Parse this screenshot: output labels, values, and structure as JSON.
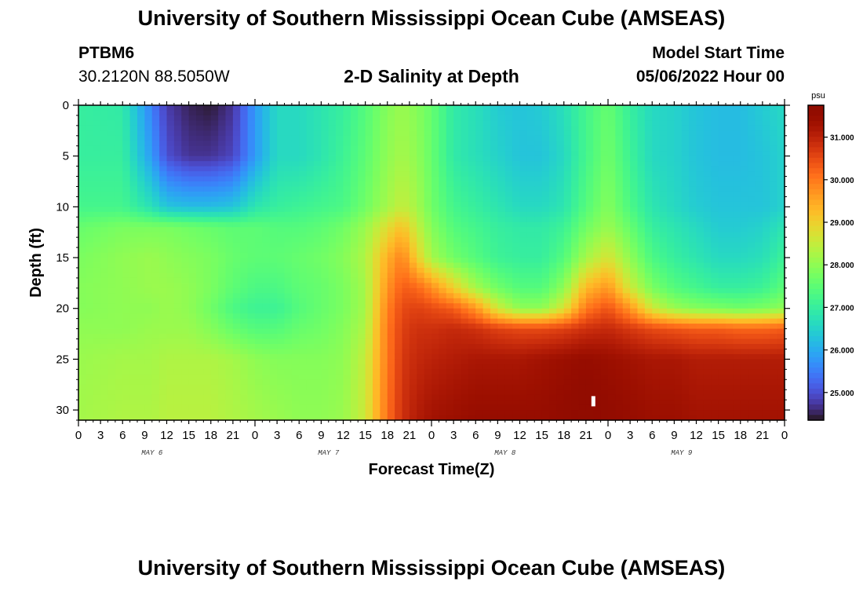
{
  "header": {
    "title": "University of Southern Mississippi Ocean Cube (AMSEAS)",
    "station": "PTBM6",
    "coords": "30.2120N  88.5050W",
    "product": "2-D Salinity at Depth",
    "model_start_label": "Model Start Time",
    "model_start_value": "05/06/2022 Hour 00"
  },
  "footer": {
    "title": "University of Southern Mississippi Ocean Cube (AMSEAS)"
  },
  "chart_data": {
    "type": "heatmap",
    "title": "2-D Salinity at Depth",
    "xlabel": "Forecast Time(Z)",
    "ylabel": "Depth (ft)",
    "x_tick_labels": [
      "0",
      "3",
      "6",
      "9",
      "12",
      "15",
      "18",
      "21",
      "0",
      "3",
      "6",
      "9",
      "12",
      "15",
      "18",
      "21",
      "0",
      "3",
      "6",
      "9",
      "12",
      "15",
      "18",
      "21",
      "0",
      "3",
      "6",
      "9",
      "12",
      "15",
      "18",
      "21",
      "0"
    ],
    "day_labels": [
      "MAY 6",
      "MAY 7",
      "MAY 8",
      "MAY 9"
    ],
    "xlim_hours": [
      0,
      96
    ],
    "y_ticks": [
      0,
      5,
      10,
      15,
      20,
      25,
      30
    ],
    "ylim": [
      0,
      31
    ],
    "y_inverted": true,
    "colorbar": {
      "unit": "psu",
      "ticks": [
        25.0,
        26.0,
        27.0,
        28.0,
        29.0,
        30.0,
        31.0
      ],
      "tick_labels": [
        "25.000",
        "26.000",
        "27.000",
        "28.000",
        "29.000",
        "30.000",
        "31.000"
      ],
      "range": [
        24.35,
        31.75
      ],
      "colormap": "turbo"
    },
    "salinity_grid": {
      "depths_ft": [
        0,
        5,
        10,
        12,
        15,
        18,
        20,
        22,
        25,
        31
      ],
      "hours": [
        0,
        6,
        10,
        12,
        15,
        18,
        21,
        24,
        27,
        30,
        33,
        36,
        39,
        42,
        44,
        46,
        48,
        51,
        54,
        57,
        60,
        63,
        66,
        69,
        72,
        75,
        78,
        81,
        84,
        87,
        90,
        93,
        96
      ],
      "values": [
        [
          27.0,
          26.9,
          25.5,
          24.8,
          24.5,
          24.4,
          24.7,
          25.8,
          26.6,
          26.6,
          26.8,
          27.0,
          27.4,
          27.9,
          28.1,
          27.9,
          27.6,
          26.9,
          26.7,
          26.4,
          26.3,
          26.4,
          26.7,
          27.2,
          27.6,
          27.0,
          26.6,
          26.5,
          26.3,
          26.2,
          26.2,
          26.4,
          26.6
        ],
        [
          27.0,
          27.0,
          25.8,
          25.0,
          24.7,
          24.7,
          24.9,
          25.8,
          26.6,
          26.6,
          26.8,
          27.1,
          27.5,
          28.0,
          28.2,
          28.0,
          27.6,
          26.9,
          26.7,
          26.5,
          26.3,
          26.3,
          26.6,
          27.2,
          27.7,
          27.1,
          26.6,
          26.5,
          26.3,
          26.2,
          26.2,
          26.3,
          26.5
        ],
        [
          27.2,
          27.2,
          26.7,
          26.3,
          26.2,
          26.2,
          26.3,
          26.8,
          27.0,
          27.1,
          27.2,
          27.3,
          27.7,
          28.2,
          28.5,
          28.2,
          27.7,
          27.2,
          27.0,
          26.8,
          26.6,
          26.6,
          26.8,
          27.4,
          27.9,
          27.3,
          26.8,
          26.6,
          26.4,
          26.3,
          26.3,
          26.3,
          26.5
        ],
        [
          27.6,
          27.8,
          27.8,
          27.8,
          27.7,
          27.6,
          27.5,
          27.5,
          27.4,
          27.4,
          27.5,
          27.7,
          28.1,
          28.8,
          29.2,
          28.5,
          27.9,
          27.4,
          27.2,
          27.0,
          26.9,
          26.9,
          27.1,
          27.7,
          28.1,
          27.6,
          27.0,
          26.8,
          26.6,
          26.4,
          26.4,
          26.5,
          26.8
        ],
        [
          27.8,
          28.0,
          28.1,
          28.0,
          27.9,
          27.8,
          27.6,
          27.5,
          27.5,
          27.6,
          27.7,
          27.9,
          28.3,
          29.4,
          29.9,
          29.0,
          28.2,
          27.7,
          27.4,
          27.1,
          27.0,
          27.0,
          27.4,
          28.2,
          28.7,
          28.0,
          27.3,
          27.0,
          26.8,
          26.6,
          26.6,
          26.7,
          27.1
        ],
        [
          27.9,
          28.0,
          28.1,
          28.1,
          28.0,
          27.8,
          27.5,
          27.3,
          27.3,
          27.5,
          27.6,
          27.8,
          28.2,
          29.7,
          30.3,
          30.2,
          29.8,
          29.0,
          28.2,
          27.7,
          27.4,
          27.4,
          28.0,
          29.3,
          29.7,
          28.6,
          27.8,
          27.4,
          27.2,
          27.0,
          27.0,
          27.1,
          27.5
        ],
        [
          27.9,
          28.0,
          28.0,
          28.1,
          28.0,
          27.7,
          27.3,
          27.1,
          27.1,
          27.4,
          27.6,
          27.8,
          28.2,
          29.9,
          30.5,
          30.6,
          30.5,
          30.3,
          29.7,
          28.6,
          28.0,
          28.0,
          28.7,
          30.0,
          30.4,
          29.7,
          28.6,
          28.1,
          27.9,
          27.8,
          27.7,
          27.8,
          28.0
        ],
        [
          28.0,
          28.0,
          28.1,
          28.1,
          28.1,
          27.9,
          27.6,
          27.4,
          27.4,
          27.6,
          27.7,
          27.9,
          28.3,
          30.0,
          30.6,
          30.8,
          30.8,
          30.9,
          30.8,
          30.6,
          30.5,
          30.5,
          30.6,
          30.8,
          30.9,
          30.7,
          30.5,
          30.4,
          30.3,
          30.3,
          30.2,
          30.2,
          30.3
        ],
        [
          28.1,
          28.2,
          28.2,
          28.3,
          28.3,
          28.3,
          28.2,
          28.0,
          27.9,
          27.9,
          27.9,
          28.0,
          28.5,
          30.0,
          30.7,
          30.9,
          31.0,
          31.1,
          31.2,
          31.2,
          31.2,
          31.3,
          31.4,
          31.5,
          31.4,
          31.3,
          31.2,
          31.2,
          31.1,
          31.1,
          31.1,
          31.1,
          31.1
        ],
        [
          28.2,
          28.3,
          28.3,
          28.4,
          28.4,
          28.4,
          28.3,
          28.2,
          28.1,
          28.0,
          28.0,
          28.1,
          28.6,
          30.1,
          30.8,
          31.1,
          31.3,
          31.4,
          31.5,
          31.5,
          31.5,
          31.5,
          31.6,
          31.7,
          31.6,
          31.5,
          31.4,
          31.4,
          31.3,
          31.3,
          31.3,
          31.3,
          31.3
        ]
      ]
    },
    "annotation_marker": {
      "hours": 70,
      "depth_ft": 29.1
    }
  }
}
